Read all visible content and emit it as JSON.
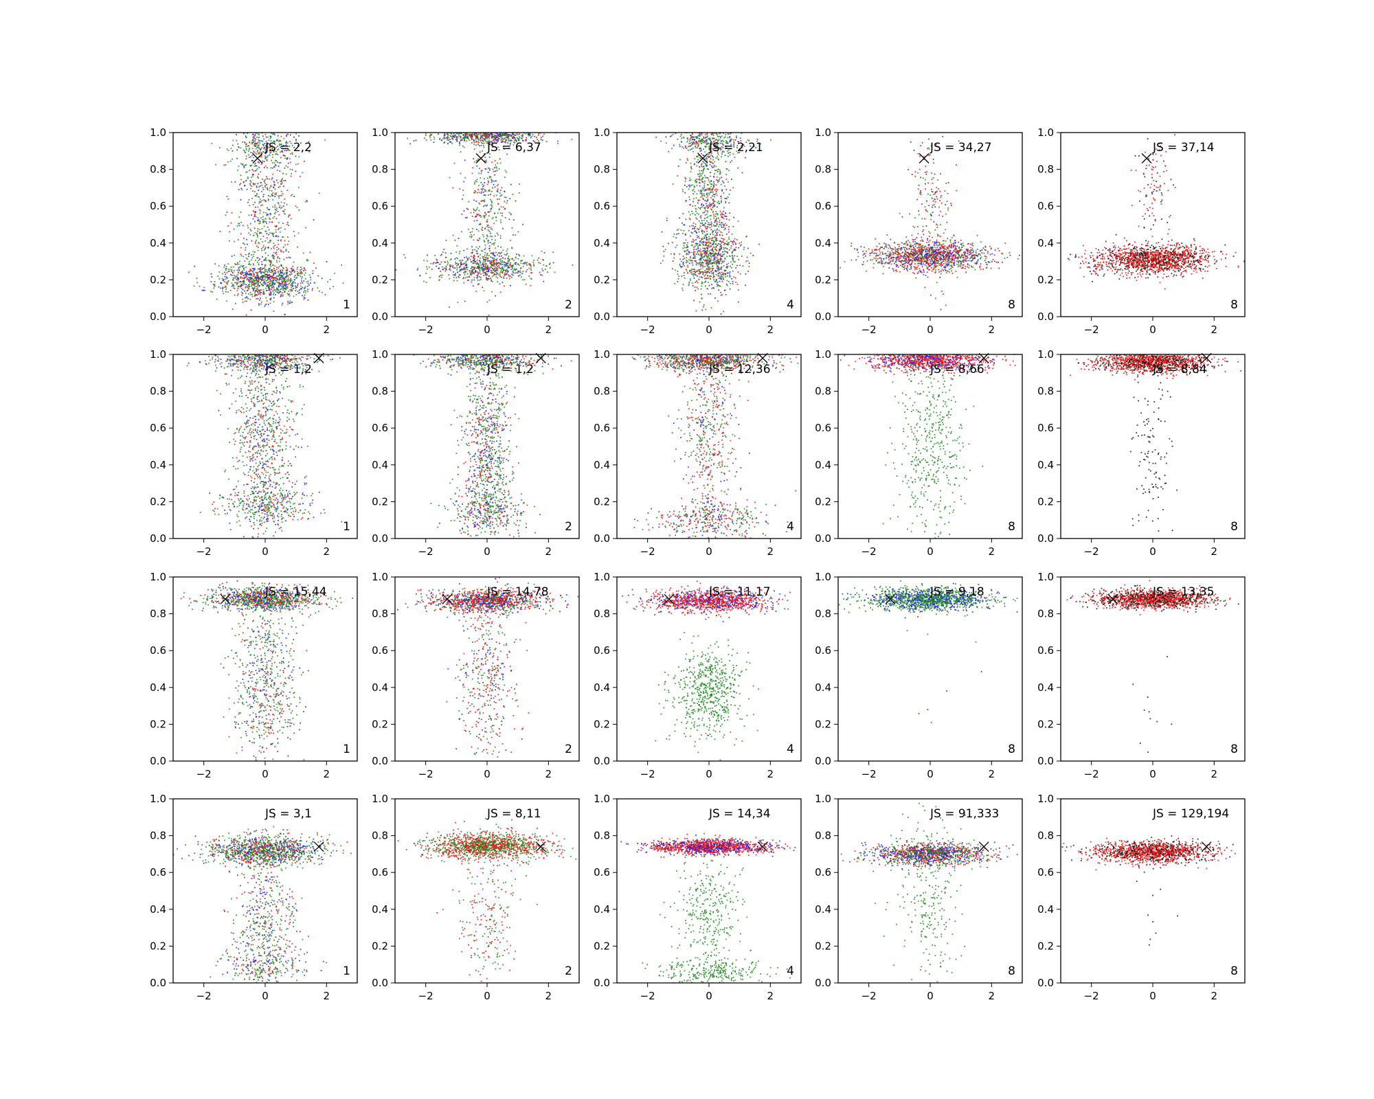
{
  "chart_data": {
    "type": "scatter",
    "layout": {
      "rows": 4,
      "cols": 5
    },
    "xlim": [
      -3,
      3
    ],
    "ylim": [
      0,
      1
    ],
    "xticks": [
      -2,
      0,
      2
    ],
    "yticks": [
      0.0,
      0.2,
      0.4,
      0.6,
      0.8,
      1.0
    ],
    "xtick_labels": [
      "−2",
      "0",
      "2"
    ],
    "ytick_labels": [
      "0.0",
      "0.2",
      "0.4",
      "0.6",
      "0.8",
      "1.0"
    ],
    "grid": false,
    "colors": {
      "c1": "#1f22e6",
      "c2": "#ee1111",
      "c3": "#1d8a1d",
      "c4": "#111111"
    },
    "panels": [
      {
        "row": 0,
        "col": 0,
        "label": "1",
        "js": "JS = 2,2",
        "marker": [
          -0.25,
          0.86
        ],
        "palette": "rgbg",
        "clusters": [
          {
            "cx": 0,
            "cy": 0.2,
            "sx": 0.8,
            "sy": 0.05,
            "n": 900
          },
          {
            "cx": 0,
            "cy": 0.55,
            "sx": 0.55,
            "sy": 0.28,
            "n": 700
          },
          {
            "cx": 0,
            "cy": 0.93,
            "sx": 0.6,
            "sy": 0.06,
            "n": 250
          }
        ]
      },
      {
        "row": 0,
        "col": 1,
        "label": "2",
        "js": "JS = 6,37",
        "marker": [
          -0.2,
          0.86
        ],
        "palette": "rgbg",
        "clusters": [
          {
            "cx": 0,
            "cy": 0.27,
            "sx": 0.9,
            "sy": 0.04,
            "n": 700
          },
          {
            "cx": 0,
            "cy": 0.62,
            "sx": 0.4,
            "sy": 0.22,
            "n": 400
          },
          {
            "cx": 0,
            "cy": 0.98,
            "sx": 0.9,
            "sy": 0.02,
            "n": 600
          }
        ]
      },
      {
        "row": 0,
        "col": 2,
        "label": "4",
        "js": "JS = 2,21",
        "marker": [
          -0.2,
          0.86
        ],
        "palette": "rgbg",
        "clusters": [
          {
            "cx": 0,
            "cy": 0.32,
            "sx": 0.55,
            "sy": 0.1,
            "n": 800
          },
          {
            "cx": 0,
            "cy": 0.7,
            "sx": 0.4,
            "sy": 0.2,
            "n": 650
          },
          {
            "cx": 0,
            "cy": 0.96,
            "sx": 0.6,
            "sy": 0.04,
            "n": 300
          }
        ]
      },
      {
        "row": 0,
        "col": 3,
        "label": "8",
        "js": "JS = 34,27",
        "marker": [
          -0.2,
          0.86
        ],
        "palette": "rgbr",
        "clusters": [
          {
            "cx": 0,
            "cy": 0.33,
            "sx": 0.95,
            "sy": 0.04,
            "n": 1300
          },
          {
            "cx": 0,
            "cy": 0.6,
            "sx": 0.35,
            "sy": 0.25,
            "n": 200
          }
        ]
      },
      {
        "row": 0,
        "col": 4,
        "label": "8",
        "js": "JS = 37,14",
        "marker": [
          -0.2,
          0.86
        ],
        "palette": "krr",
        "clusters": [
          {
            "cx": 0,
            "cy": 0.31,
            "sx": 0.95,
            "sy": 0.04,
            "n": 1400
          },
          {
            "cx": 0,
            "cy": 0.65,
            "sx": 0.3,
            "sy": 0.2,
            "n": 120
          }
        ]
      },
      {
        "row": 1,
        "col": 0,
        "label": "1",
        "js": "JS = 1,2",
        "marker": [
          1.75,
          0.98
        ],
        "palette": "rgbg",
        "clusters": [
          {
            "cx": 0,
            "cy": 0.97,
            "sx": 0.8,
            "sy": 0.03,
            "n": 600
          },
          {
            "cx": 0,
            "cy": 0.55,
            "sx": 0.5,
            "sy": 0.28,
            "n": 800
          },
          {
            "cx": 0,
            "cy": 0.18,
            "sx": 0.8,
            "sy": 0.06,
            "n": 350
          }
        ]
      },
      {
        "row": 1,
        "col": 1,
        "label": "2",
        "js": "JS = 1,2",
        "marker": [
          1.75,
          0.98
        ],
        "palette": "rgbg",
        "clusters": [
          {
            "cx": 0,
            "cy": 0.97,
            "sx": 0.9,
            "sy": 0.03,
            "n": 600
          },
          {
            "cx": 0,
            "cy": 0.5,
            "sx": 0.4,
            "sy": 0.25,
            "n": 800
          },
          {
            "cx": 0,
            "cy": 0.15,
            "sx": 0.6,
            "sy": 0.06,
            "n": 300
          }
        ]
      },
      {
        "row": 1,
        "col": 2,
        "label": "4",
        "js": "JS = 12,36",
        "marker": [
          1.75,
          0.98
        ],
        "palette": "rbrgg",
        "clusters": [
          {
            "cx": 0,
            "cy": 0.97,
            "sx": 0.95,
            "sy": 0.03,
            "n": 900
          },
          {
            "cx": 0,
            "cy": 0.55,
            "sx": 0.45,
            "sy": 0.25,
            "n": 500
          },
          {
            "cx": 0,
            "cy": 0.1,
            "sx": 0.9,
            "sy": 0.05,
            "n": 350
          }
        ]
      },
      {
        "row": 1,
        "col": 3,
        "label": "8",
        "js": "JS = 8,66",
        "marker": [
          1.75,
          0.98
        ],
        "palette": "rbr",
        "clusters": [
          {
            "cx": 0,
            "cy": 0.97,
            "sx": 0.95,
            "sy": 0.03,
            "n": 1100
          },
          {
            "cx": 0,
            "cy": 0.5,
            "sx": 0.55,
            "sy": 0.3,
            "n": 500,
            "palette": "g"
          }
        ]
      },
      {
        "row": 1,
        "col": 4,
        "label": "8",
        "js": "JS = 8,84",
        "marker": [
          1.75,
          0.98
        ],
        "palette": "krr",
        "clusters": [
          {
            "cx": 0,
            "cy": 0.96,
            "sx": 0.95,
            "sy": 0.03,
            "n": 1300
          },
          {
            "cx": 0,
            "cy": 0.45,
            "sx": 0.35,
            "sy": 0.25,
            "n": 120,
            "palette": "k"
          }
        ]
      },
      {
        "row": 2,
        "col": 0,
        "label": "1",
        "js": "JS = 15,44",
        "marker": [
          -1.3,
          0.88
        ],
        "palette": "rgbg",
        "clusters": [
          {
            "cx": 0,
            "cy": 0.88,
            "sx": 0.9,
            "sy": 0.03,
            "n": 1000
          },
          {
            "cx": 0,
            "cy": 0.45,
            "sx": 0.55,
            "sy": 0.25,
            "n": 700
          }
        ]
      },
      {
        "row": 2,
        "col": 1,
        "label": "2",
        "js": "JS = 14,78",
        "marker": [
          -1.3,
          0.88
        ],
        "palette": "rbrg",
        "clusters": [
          {
            "cx": 0,
            "cy": 0.87,
            "sx": 0.95,
            "sy": 0.03,
            "n": 1100
          },
          {
            "cx": 0,
            "cy": 0.45,
            "sx": 0.5,
            "sy": 0.25,
            "n": 450
          }
        ]
      },
      {
        "row": 2,
        "col": 2,
        "label": "4",
        "js": "JS = 11,17",
        "marker": [
          -1.3,
          0.88
        ],
        "palette": "rbr",
        "clusters": [
          {
            "cx": 0,
            "cy": 0.87,
            "sx": 0.95,
            "sy": 0.03,
            "n": 1100
          },
          {
            "cx": 0,
            "cy": 0.38,
            "sx": 0.6,
            "sy": 0.12,
            "n": 600,
            "palette": "g"
          }
        ]
      },
      {
        "row": 2,
        "col": 3,
        "label": "8",
        "js": "JS = 9,18",
        "marker": [
          -1.3,
          0.88
        ],
        "palette": "gbg",
        "clusters": [
          {
            "cx": 0,
            "cy": 0.88,
            "sx": 1.0,
            "sy": 0.03,
            "n": 1300
          },
          {
            "cx": 0,
            "cy": 0.4,
            "sx": 0.8,
            "sy": 0.2,
            "n": 8
          }
        ]
      },
      {
        "row": 2,
        "col": 4,
        "label": "8",
        "js": "JS = 13,35",
        "marker": [
          -1.3,
          0.88
        ],
        "palette": "rrk",
        "clusters": [
          {
            "cx": 0,
            "cy": 0.88,
            "sx": 0.95,
            "sy": 0.025,
            "n": 1300
          },
          {
            "cx": 0,
            "cy": 0.35,
            "sx": 0.4,
            "sy": 0.2,
            "n": 10,
            "palette": "k"
          }
        ]
      },
      {
        "row": 3,
        "col": 0,
        "label": "1",
        "js": "JS = 3,1",
        "marker": [
          1.75,
          0.74
        ],
        "palette": "rgbg",
        "clusters": [
          {
            "cx": 0,
            "cy": 0.72,
            "sx": 0.9,
            "sy": 0.04,
            "n": 1100
          },
          {
            "cx": 0,
            "cy": 0.35,
            "sx": 0.5,
            "sy": 0.2,
            "n": 500
          },
          {
            "cx": 0,
            "cy": 0.08,
            "sx": 0.7,
            "sy": 0.05,
            "n": 200
          }
        ]
      },
      {
        "row": 3,
        "col": 1,
        "label": "2",
        "js": "JS = 8,11",
        "marker": [
          1.75,
          0.74
        ],
        "palette": "rgrg",
        "clusters": [
          {
            "cx": 0,
            "cy": 0.74,
            "sx": 0.95,
            "sy": 0.035,
            "n": 1300
          },
          {
            "cx": 0,
            "cy": 0.35,
            "sx": 0.5,
            "sy": 0.2,
            "n": 250
          }
        ]
      },
      {
        "row": 3,
        "col": 2,
        "label": "4",
        "js": "JS = 14,34",
        "marker": [
          1.75,
          0.74
        ],
        "palette": "rbr",
        "clusters": [
          {
            "cx": 0,
            "cy": 0.74,
            "sx": 0.95,
            "sy": 0.02,
            "n": 1200
          },
          {
            "cx": 0,
            "cy": 0.35,
            "sx": 0.5,
            "sy": 0.2,
            "n": 350,
            "palette": "g"
          },
          {
            "cx": 0,
            "cy": 0.06,
            "sx": 0.9,
            "sy": 0.04,
            "n": 250,
            "palette": "g"
          }
        ]
      },
      {
        "row": 3,
        "col": 3,
        "label": "8",
        "js": "JS = 91,333",
        "marker": [
          1.75,
          0.74
        ],
        "palette": "rgb",
        "clusters": [
          {
            "cx": 0,
            "cy": 0.7,
            "sx": 0.95,
            "sy": 0.03,
            "n": 1200
          },
          {
            "cx": 0,
            "cy": 0.45,
            "sx": 0.5,
            "sy": 0.25,
            "n": 250,
            "palette": "g"
          }
        ]
      },
      {
        "row": 3,
        "col": 4,
        "label": "8",
        "js": "JS = 129,194",
        "marker": [
          1.75,
          0.74
        ],
        "palette": "krr",
        "clusters": [
          {
            "cx": 0,
            "cy": 0.71,
            "sx": 0.95,
            "sy": 0.03,
            "n": 1300
          },
          {
            "cx": 0,
            "cy": 0.4,
            "sx": 0.3,
            "sy": 0.15,
            "n": 10,
            "palette": "k"
          }
        ]
      }
    ]
  }
}
